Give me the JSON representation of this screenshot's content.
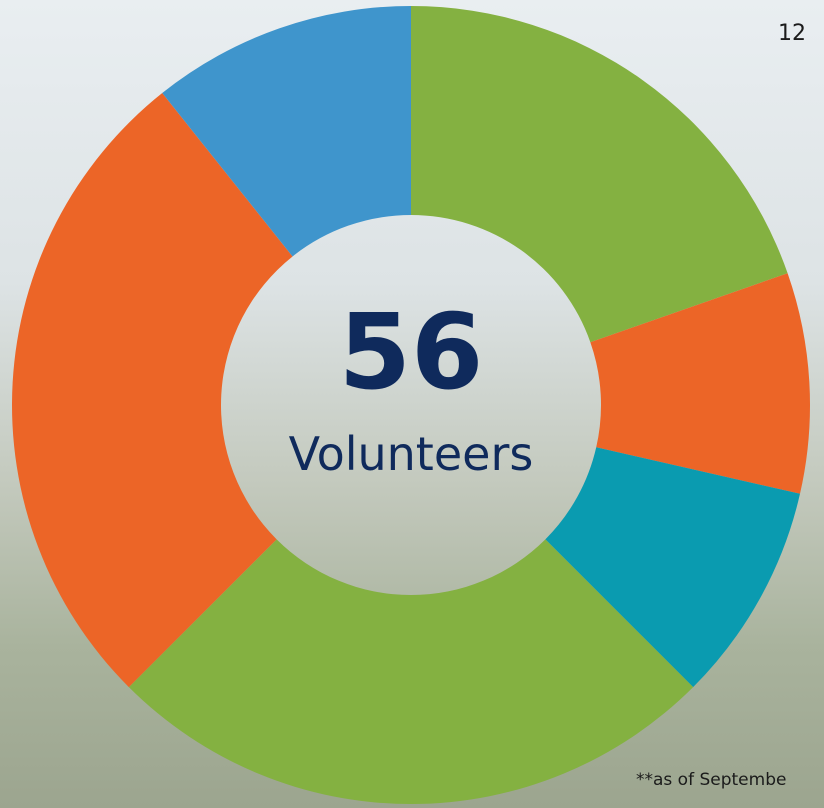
{
  "page_number": "12",
  "footnote": "**as of Septembe",
  "chart_data": {
    "type": "donut",
    "center_value": 56,
    "center_label": "Volunteers",
    "values": [
      11,
      5,
      5,
      14,
      15,
      6
    ],
    "colors": [
      "#84b141",
      "#ec6527",
      "#0a9bb0",
      "#84b141",
      "#ec6527",
      "#3f95cc"
    ]
  }
}
